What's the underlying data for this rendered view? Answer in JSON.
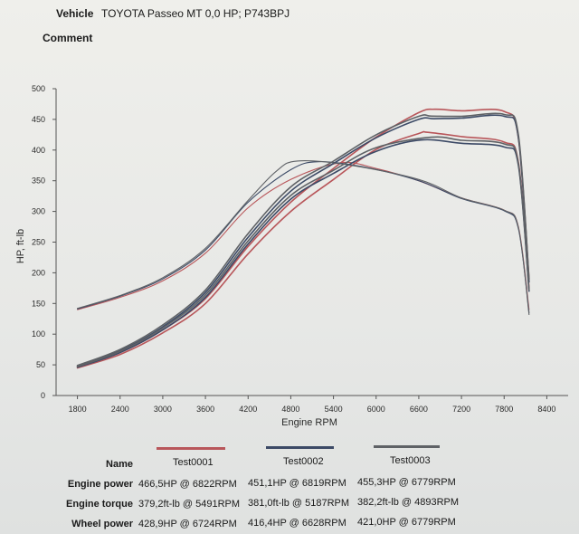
{
  "header": {
    "vehicle_label": "Vehicle",
    "vehicle_value": "TOYOTA Passeo MT 0,0 HP; P743BPJ",
    "comment_label": "Comment"
  },
  "legend_table": {
    "name_label": "Name",
    "names": [
      "Test0001",
      "Test0002",
      "Test0003"
    ],
    "colors": [
      "#b8565a",
      "#3c4a66",
      "#5f6266"
    ],
    "rows": [
      {
        "label": "Engine power",
        "values": [
          "466,5HP @ 6822RPM",
          "451,1HP @ 6819RPM",
          "455,3HP @ 6779RPM"
        ]
      },
      {
        "label": "Engine torque",
        "values": [
          "379,2ft-lb @ 5491RPM",
          "381,0ft-lb @ 5187RPM",
          "382,2ft-lb @ 4893RPM"
        ]
      },
      {
        "label": "Wheel power",
        "values": [
          "428,9HP @ 6724RPM",
          "416,4HP @ 6628RPM",
          "421,0HP @ 6779RPM"
        ]
      }
    ]
  },
  "chart_data": {
    "type": "line",
    "xlabel": "Engine RPM",
    "ylabel": "HP, ft-lb",
    "xlim": [
      1500,
      8700
    ],
    "ylim": [
      0,
      500
    ],
    "xticks": [
      1800,
      2400,
      3000,
      3600,
      4200,
      4800,
      5400,
      6000,
      6600,
      7200,
      7800,
      8400
    ],
    "yticks": [
      0,
      50,
      100,
      150,
      200,
      250,
      300,
      350,
      400,
      450,
      500
    ],
    "series": [
      {
        "name": "Test0001",
        "quantity": "engine power",
        "color": "#b8565a",
        "points": [
          [
            1800,
            47
          ],
          [
            2400,
            70
          ],
          [
            3000,
            107
          ],
          [
            3600,
            158
          ],
          [
            4200,
            243
          ],
          [
            4800,
            315
          ],
          [
            5400,
            370
          ],
          [
            6000,
            421
          ],
          [
            6600,
            461
          ],
          [
            6822,
            466.5
          ],
          [
            7200,
            464
          ],
          [
            7800,
            463
          ],
          [
            8000,
            420
          ],
          [
            8150,
            190
          ]
        ]
      },
      {
        "name": "Test0001",
        "quantity": "wheel power",
        "color": "#b8565a",
        "points": [
          [
            1800,
            45
          ],
          [
            2400,
            67
          ],
          [
            3000,
            102
          ],
          [
            3600,
            150
          ],
          [
            4200,
            231
          ],
          [
            4800,
            300
          ],
          [
            5400,
            352
          ],
          [
            6000,
            401
          ],
          [
            6600,
            427
          ],
          [
            6724,
            428.9
          ],
          [
            7200,
            422
          ],
          [
            7800,
            413
          ],
          [
            8000,
            380
          ],
          [
            8150,
            175
          ]
        ]
      },
      {
        "name": "Test0001",
        "quantity": "engine torque",
        "color": "#b8565a",
        "points": [
          [
            1800,
            140
          ],
          [
            2400,
            160
          ],
          [
            3000,
            187
          ],
          [
            3600,
            232
          ],
          [
            4200,
            306
          ],
          [
            4800,
            352
          ],
          [
            5491,
            379.2
          ],
          [
            6000,
            370
          ],
          [
            6600,
            350
          ],
          [
            7200,
            322
          ],
          [
            7800,
            302
          ],
          [
            8000,
            275
          ],
          [
            8150,
            140
          ]
        ]
      },
      {
        "name": "Test0002",
        "quantity": "engine power",
        "color": "#3c4a66",
        "points": [
          [
            1800,
            48
          ],
          [
            2400,
            73
          ],
          [
            3000,
            112
          ],
          [
            3600,
            168
          ],
          [
            4200,
            258
          ],
          [
            4800,
            333
          ],
          [
            5400,
            378
          ],
          [
            6000,
            420
          ],
          [
            6600,
            450
          ],
          [
            6819,
            451.1
          ],
          [
            7200,
            452
          ],
          [
            7800,
            455
          ],
          [
            8000,
            420
          ],
          [
            8150,
            185
          ]
        ]
      },
      {
        "name": "Test0002",
        "quantity": "wheel power",
        "color": "#3c4a66",
        "points": [
          [
            1800,
            46
          ],
          [
            2400,
            70
          ],
          [
            3000,
            107
          ],
          [
            3600,
            160
          ],
          [
            4200,
            247
          ],
          [
            4800,
            320
          ],
          [
            5400,
            362
          ],
          [
            6000,
            398
          ],
          [
            6628,
            416.4
          ],
          [
            7200,
            411
          ],
          [
            7800,
            405
          ],
          [
            8000,
            375
          ],
          [
            8150,
            170
          ]
        ]
      },
      {
        "name": "Test0002",
        "quantity": "engine torque",
        "color": "#3c4a66",
        "points": [
          [
            1800,
            141
          ],
          [
            2400,
            162
          ],
          [
            3000,
            190
          ],
          [
            3600,
            237
          ],
          [
            4200,
            315
          ],
          [
            4800,
            368
          ],
          [
            5187,
            381
          ],
          [
            5800,
            373
          ],
          [
            6600,
            350
          ],
          [
            7200,
            321
          ],
          [
            7800,
            301
          ],
          [
            8000,
            272
          ],
          [
            8150,
            135
          ]
        ]
      },
      {
        "name": "Test0003",
        "quantity": "engine power",
        "color": "#5f6266",
        "points": [
          [
            1800,
            49
          ],
          [
            2400,
            75
          ],
          [
            3000,
            115
          ],
          [
            3600,
            172
          ],
          [
            4200,
            264
          ],
          [
            4800,
            340
          ],
          [
            5400,
            382
          ],
          [
            6000,
            425
          ],
          [
            6600,
            455
          ],
          [
            6779,
            455.3
          ],
          [
            7200,
            455
          ],
          [
            7800,
            458
          ],
          [
            8000,
            425
          ],
          [
            8150,
            190
          ]
        ]
      },
      {
        "name": "Test0003",
        "quantity": "wheel power",
        "color": "#5f6266",
        "points": [
          [
            1800,
            47
          ],
          [
            2400,
            72
          ],
          [
            3000,
            110
          ],
          [
            3600,
            164
          ],
          [
            4200,
            252
          ],
          [
            4800,
            326
          ],
          [
            5400,
            367
          ],
          [
            6000,
            404
          ],
          [
            6779,
            421
          ],
          [
            7200,
            416
          ],
          [
            7800,
            410
          ],
          [
            8000,
            378
          ],
          [
            8150,
            172
          ]
        ]
      },
      {
        "name": "Test0003",
        "quantity": "engine torque",
        "color": "#5f6266",
        "points": [
          [
            1800,
            142
          ],
          [
            2400,
            163
          ],
          [
            3000,
            192
          ],
          [
            3600,
            240
          ],
          [
            4200,
            318
          ],
          [
            4600,
            366
          ],
          [
            4893,
            382.2
          ],
          [
            5600,
            376
          ],
          [
            6600,
            352
          ],
          [
            7200,
            322
          ],
          [
            7800,
            302
          ],
          [
            8000,
            274
          ],
          [
            8150,
            132
          ]
        ]
      }
    ]
  }
}
